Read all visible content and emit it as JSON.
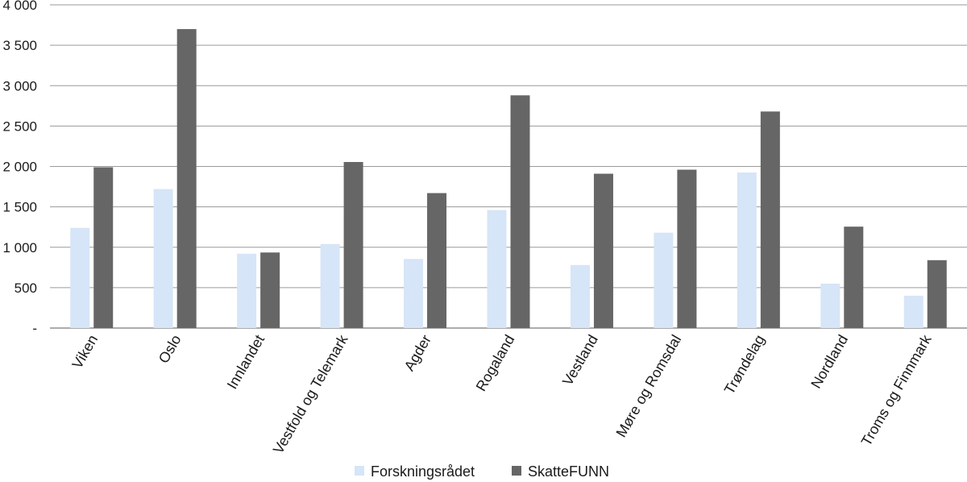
{
  "chart_data": {
    "type": "bar",
    "categories": [
      "Viken",
      "Oslo",
      "Innlandet",
      "Vestfold og Telemark",
      "Agder",
      "Rogaland",
      "Vestland",
      "Møre og Romsdal",
      "Trøndelag",
      "Nordland",
      "Troms og Finnmark"
    ],
    "series": [
      {
        "name": "Forskningsrådet",
        "color": "#d6e5f7",
        "values": [
          1240,
          1720,
          920,
          1040,
          855,
          1460,
          780,
          1180,
          1925,
          550,
          400
        ]
      },
      {
        "name": "SkatteFUNN",
        "color": "#666666",
        "values": [
          1990,
          3700,
          935,
          2055,
          1670,
          2880,
          1910,
          1960,
          2680,
          1255,
          840
        ]
      }
    ],
    "yticks": [
      0,
      500,
      1000,
      1500,
      2000,
      2500,
      3000,
      3500,
      4000
    ],
    "ytick_labels": [
      "-",
      "500",
      "1 000",
      "1 500",
      "2 000",
      "2 500",
      "3 000",
      "3 500",
      "4 000"
    ],
    "ylim": [
      0,
      4000
    ],
    "grid": true,
    "legend_position": "bottom"
  }
}
